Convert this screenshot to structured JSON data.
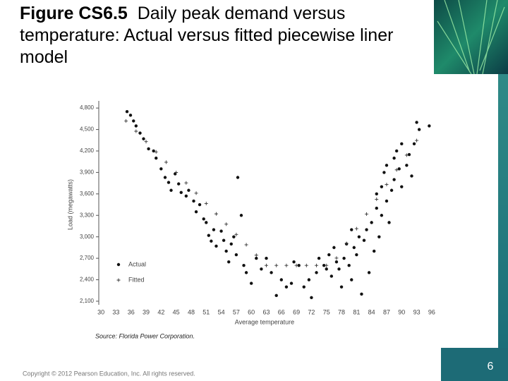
{
  "slide": {
    "copyright": "Copyright © 2012 Pearson Education, Inc. All rights reserved.",
    "page_number": "6"
  },
  "chart_data": {
    "type": "scatter",
    "title_label": "Figure CS6.5",
    "title": "Daily peak demand versus temperature: Actual versus fitted piecewise liner model",
    "x_label": "Average temperature",
    "y_label": "Load (megawatts)",
    "source": "Source: Florida Power Corporation.",
    "xlim": [
      29,
      97
    ],
    "ylim": [
      2050,
      4900
    ],
    "xticks": [
      30,
      33,
      36,
      39,
      42,
      45,
      48,
      51,
      54,
      57,
      60,
      63,
      66,
      69,
      72,
      75,
      78,
      81,
      84,
      87,
      90,
      93,
      96
    ],
    "yticks": [
      {
        "value": 2100,
        "label": "2,100"
      },
      {
        "value": 2400,
        "label": "2,400"
      },
      {
        "value": 2700,
        "label": "2,700"
      },
      {
        "value": 3000,
        "label": "3,000"
      },
      {
        "value": 3300,
        "label": "3,300"
      },
      {
        "value": 3600,
        "label": "3,600"
      },
      {
        "value": 3900,
        "label": "3,900"
      },
      {
        "value": 4200,
        "label": "4,200"
      },
      {
        "value": 4500,
        "label": "4,500"
      },
      {
        "value": 4800,
        "label": "4,800"
      }
    ],
    "series": [
      {
        "name": "Actual",
        "marker": "dot",
        "color": "#111111",
        "x": [
          35.2,
          35.9,
          36.5,
          37.0,
          37.8,
          38.5,
          39.5,
          40.5,
          41.0,
          42.0,
          42.8,
          43.5,
          44.0,
          44.8,
          45.5,
          46.0,
          47.0,
          47.5,
          48.5,
          49.0,
          49.7,
          50.5,
          51.0,
          51.5,
          52.0,
          52.5,
          53.0,
          54.0,
          54.5,
          55.0,
          55.5,
          56.0,
          56.5,
          57.0,
          57.3,
          58.0,
          58.5,
          59.0,
          60.0,
          61.0,
          62.0,
          63.0,
          64.0,
          65.0,
          66.0,
          67.0,
          68.0,
          68.5,
          69.5,
          70.5,
          71.5,
          72.0,
          73.0,
          73.5,
          74.5,
          75.0,
          75.5,
          76.0,
          76.5,
          77.0,
          77.5,
          78.0,
          78.5,
          79.0,
          79.5,
          80.0,
          80.0,
          80.5,
          81.0,
          81.5,
          82.0,
          82.5,
          83.0,
          83.5,
          84.0,
          84.5,
          85.0,
          85.0,
          85.5,
          86.0,
          86.0,
          86.5,
          87.0,
          87.0,
          87.5,
          88.0,
          88.5,
          88.5,
          89.0,
          89.5,
          90.0,
          90.0,
          91.0,
          91.5,
          92.0,
          92.5,
          93.0,
          93.5,
          95.5
        ],
        "values": [
          4750,
          4700,
          4620,
          4550,
          4450,
          4370,
          4230,
          4200,
          4100,
          3950,
          3830,
          3760,
          3650,
          3880,
          3740,
          3620,
          3570,
          3650,
          3500,
          3350,
          3450,
          3250,
          3200,
          3020,
          2940,
          3100,
          2870,
          3080,
          2950,
          2800,
          2650,
          2900,
          3000,
          2750,
          3830,
          3300,
          2600,
          2500,
          2350,
          2700,
          2550,
          2700,
          2500,
          2180,
          2400,
          2300,
          2350,
          2650,
          2600,
          2300,
          2400,
          2150,
          2500,
          2700,
          2600,
          2550,
          2750,
          2450,
          2850,
          2650,
          2550,
          2300,
          2700,
          2900,
          2600,
          3100,
          2400,
          2850,
          2750,
          3000,
          2200,
          2950,
          3100,
          2500,
          3200,
          2800,
          3400,
          3600,
          3000,
          3700,
          3300,
          3900,
          3500,
          4000,
          3200,
          3650,
          4100,
          3800,
          4200,
          3950,
          4300,
          3700,
          4000,
          4150,
          3850,
          4300,
          4600,
          4500,
          4550
        ]
      },
      {
        "name": "Fitted",
        "marker": "plus",
        "color": "#333333",
        "x": [
          35,
          37,
          39,
          41,
          43,
          45,
          47,
          49,
          51,
          53,
          55,
          57,
          59,
          61,
          63,
          65,
          67,
          69,
          71,
          73,
          75,
          77,
          79,
          81,
          83,
          85,
          87,
          89,
          91,
          93
        ],
        "values": [
          4620,
          4476,
          4331,
          4187,
          4043,
          3899,
          3754,
          3610,
          3466,
          3321,
          3177,
          3033,
          2889,
          2744,
          2600,
          2600,
          2600,
          2600,
          2600,
          2600,
          2600,
          2703,
          2908,
          3114,
          3319,
          3525,
          3731,
          3936,
          4142,
          4347
        ]
      }
    ]
  }
}
